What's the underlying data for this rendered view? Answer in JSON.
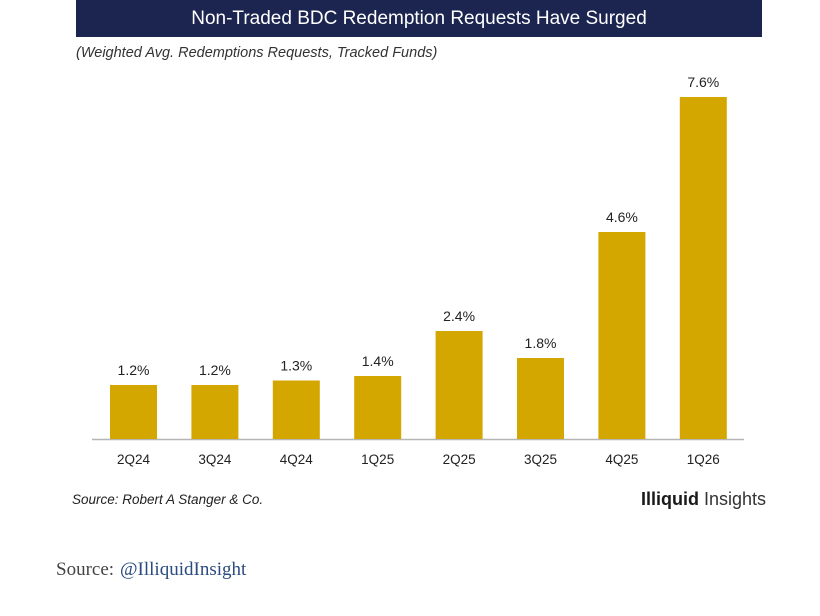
{
  "chart_data": {
    "type": "bar",
    "title": "Non-Traded BDC Redemption Requests Have Surged",
    "subtitle": "(Weighted Avg. Redemptions Requests, Tracked Funds)",
    "categories": [
      "2Q24",
      "3Q24",
      "4Q24",
      "1Q25",
      "2Q25",
      "3Q25",
      "4Q25",
      "1Q26"
    ],
    "values": [
      1.2,
      1.2,
      1.3,
      1.4,
      2.4,
      1.8,
      4.6,
      7.6
    ],
    "value_labels": [
      "1.2%",
      "1.2%",
      "1.3%",
      "1.4%",
      "2.4%",
      "1.8%",
      "4.6%",
      "7.6%"
    ],
    "xlabel": "",
    "ylabel": "",
    "ylim": [
      0,
      7.6
    ],
    "grid": false,
    "bar_color": "#d4a600",
    "source": "Source: Robert A Stanger & Co."
  },
  "brand": {
    "bold": "Illiquid",
    "regular": " Insights"
  },
  "footer": {
    "label": "Source:",
    "link": "@IlliquidInsight"
  },
  "colors": {
    "banner": "#1b2550",
    "bar": "#d4a600",
    "link": "#2a4a80"
  }
}
